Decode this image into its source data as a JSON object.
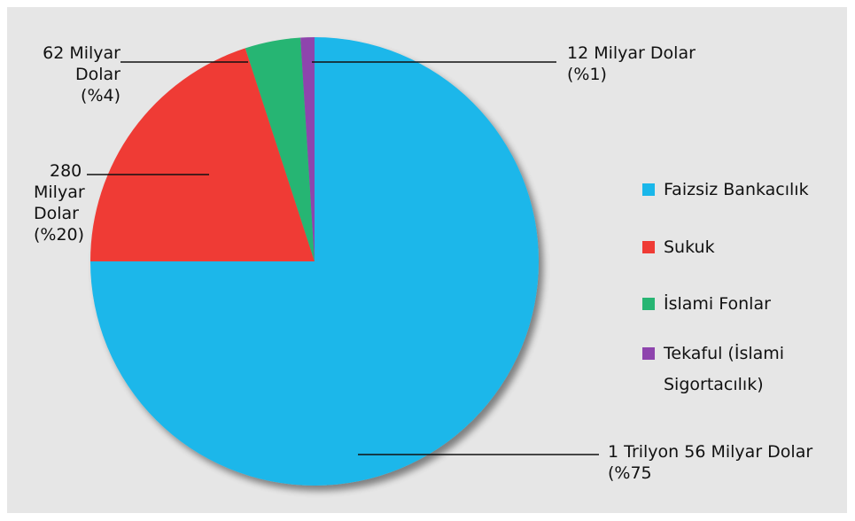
{
  "chart_data": {
    "type": "pie",
    "slices": [
      {
        "name": "Faizsiz Bankacılık",
        "value": 75,
        "color": "#1ab7ea"
      },
      {
        "name": "Sukuk",
        "value": 20,
        "color": "#ef3b35"
      },
      {
        "name": "İslami Fonlar",
        "value": 4,
        "color": "#27b573"
      },
      {
        "name": "Tekaful (İslami Sigortacılık)",
        "value": 1,
        "color": "#8e44ad"
      }
    ],
    "legend": {
      "placement": "right",
      "items": [
        {
          "label_lines": [
            "Faizsiz Bankacılık"
          ],
          "color": "#1ab7ea"
        },
        {
          "label_lines": [
            "Sukuk"
          ],
          "color": "#ef3b35"
        },
        {
          "label_lines": [
            "İslami Fonlar"
          ],
          "color": "#27b573"
        },
        {
          "label_lines": [
            "Tekaful (İslami",
            "Sigortacılık)"
          ],
          "color": "#8e44ad"
        }
      ]
    },
    "annotations": [
      {
        "slice": "Faizsiz Bankacılık",
        "lines": [
          "1 Trilyon 56 Milyar Dolar",
          "(%75"
        ]
      },
      {
        "slice": "Sukuk",
        "lines": [
          "280",
          "Milyar",
          "Dolar",
          "(%20)"
        ]
      },
      {
        "slice": "İslami Fonlar",
        "lines": [
          "62 Milyar",
          "Dolar",
          "(%4)"
        ]
      },
      {
        "slice": "Tekaful (İslami Sigortacılık)",
        "lines": [
          "12 Milyar Dolar",
          "(%1)"
        ]
      }
    ]
  }
}
